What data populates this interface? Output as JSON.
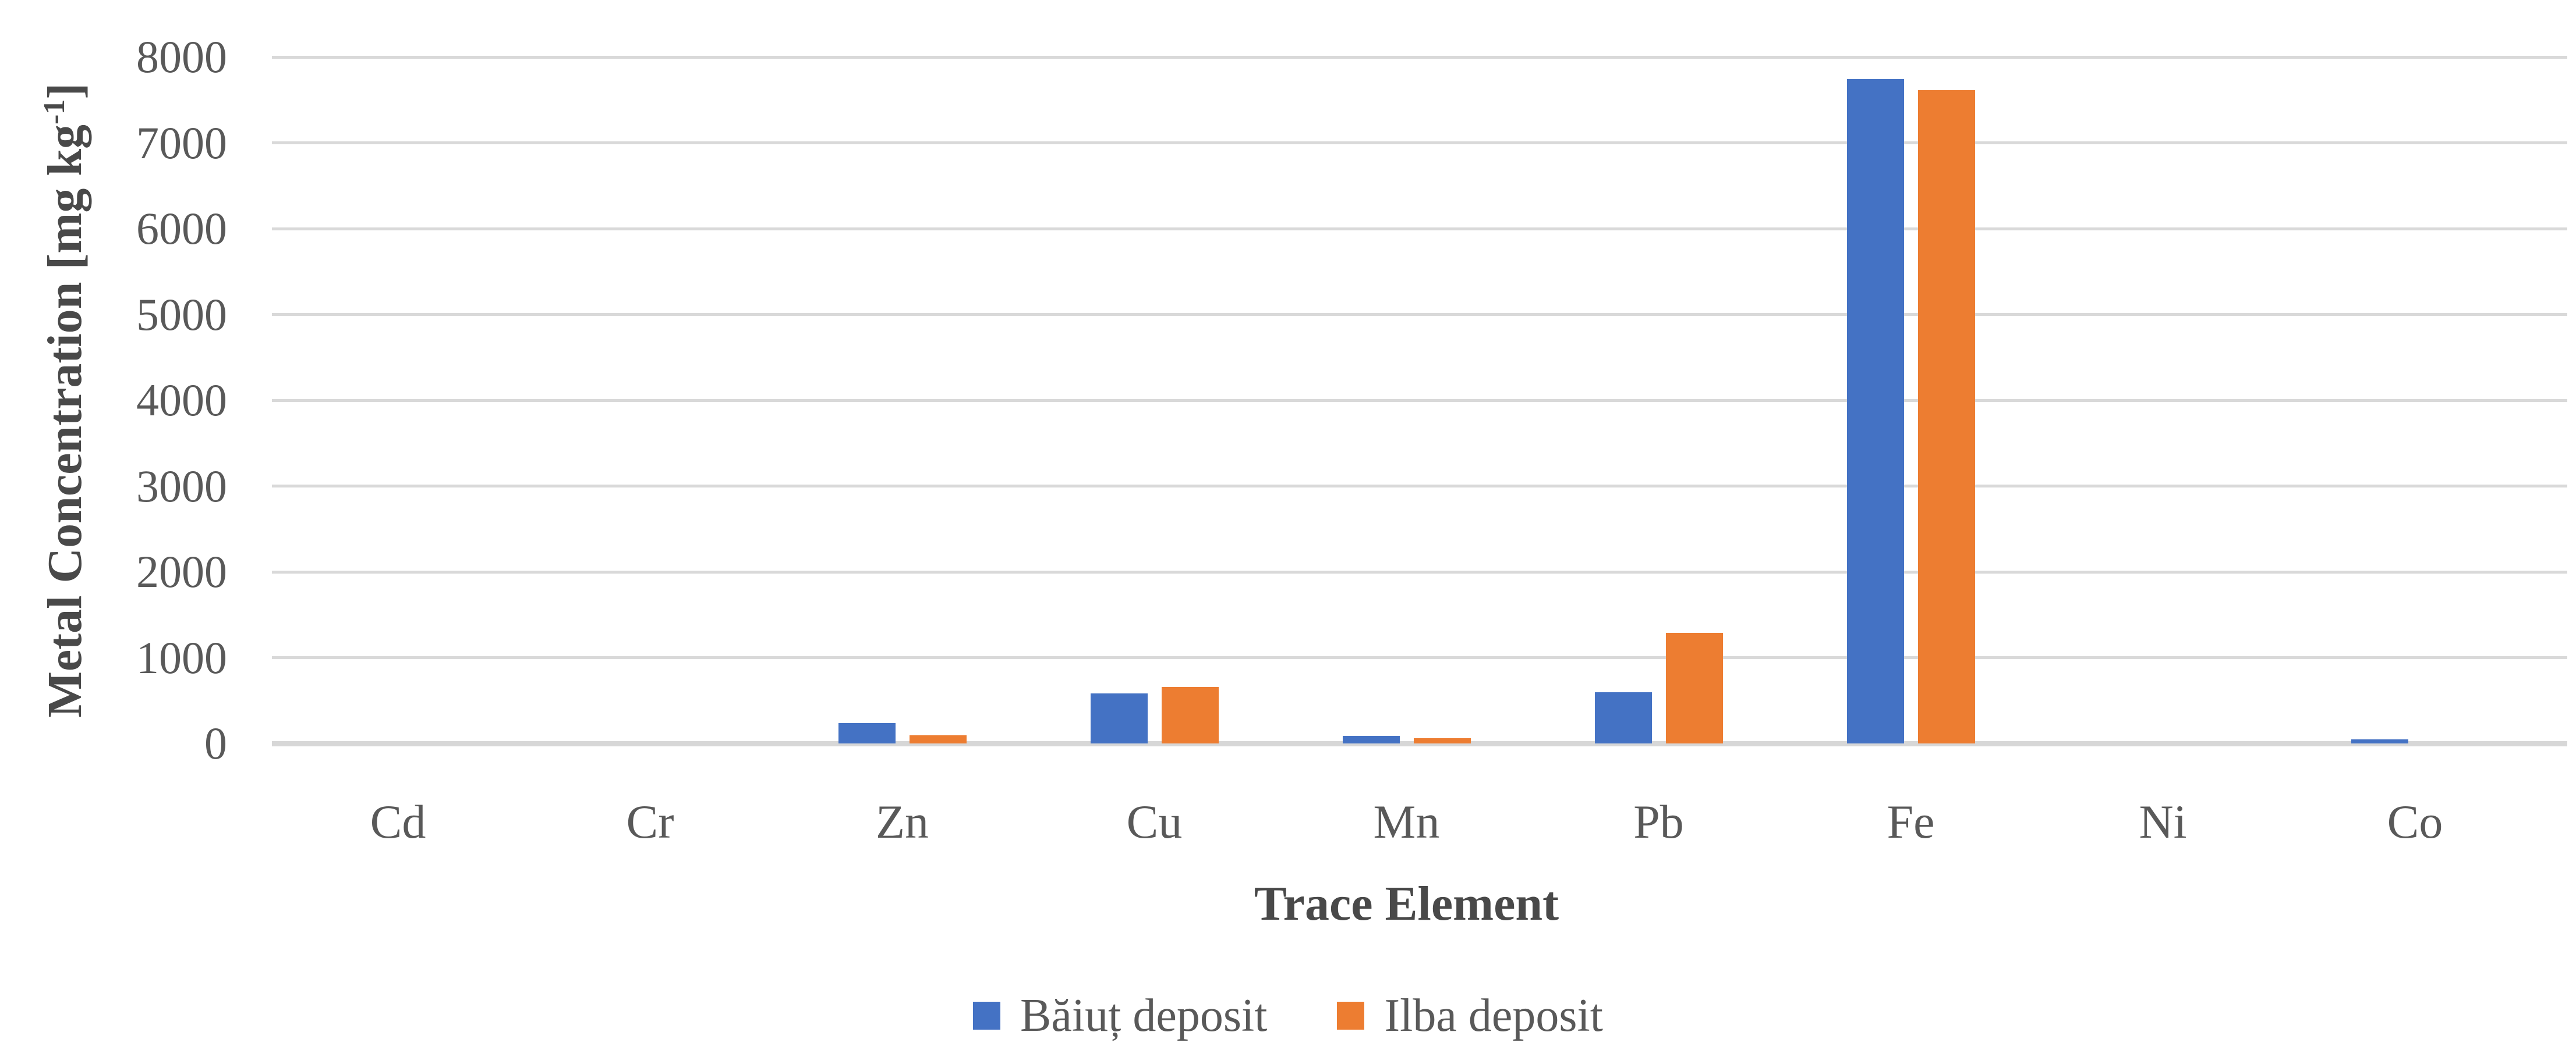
{
  "chart_data": {
    "type": "bar",
    "categories": [
      "Cd",
      "Cr",
      "Zn",
      "Cu",
      "Mn",
      "Pb",
      "Fe",
      "Ni",
      "Co"
    ],
    "series": [
      {
        "name": "Băiuț deposit",
        "color": "#4472C4",
        "values": [
          0,
          0,
          240,
          580,
          85,
          595,
          7745,
          0,
          50
        ]
      },
      {
        "name": "Ilba deposit",
        "color": "#ED7D31",
        "values": [
          0,
          0,
          95,
          655,
          60,
          1285,
          7615,
          0,
          0
        ]
      }
    ],
    "xlabel": "Trace Element",
    "ylabel": "Metal Concentration [mg kg⁻¹]",
    "ylabel_main": "Metal Concentration [mg kg",
    "ylabel_sup": "-1",
    "ylabel_close": "]",
    "ylim": [
      0,
      8000
    ],
    "ytick_interval": 1000,
    "yticks": [
      0,
      1000,
      2000,
      3000,
      4000,
      5000,
      6000,
      7000,
      8000
    ],
    "grid": true,
    "legend_position": "bottom",
    "gridline_color": "#D9D9D9",
    "tick_text_color": "#595959",
    "axis_title_color": "#494949"
  }
}
